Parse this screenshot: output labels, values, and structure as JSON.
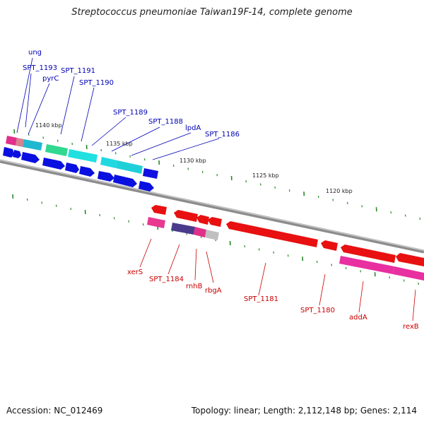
{
  "title": "Streptococcus pneumoniae Taiwan19F-14, complete genome",
  "footer": {
    "accession": "Accession: NC_012469",
    "summary": "Topology: linear; Length: 2,112,148 bp; Genes: 2,114"
  },
  "colors": {
    "forward_label": "#0000b4",
    "reverse_label": "#c80000",
    "backbone": "#8c8c8c",
    "tick": "#2a8a2a"
  },
  "kbp_markers": [
    "1140 kbp",
    "1135 kbp",
    "1130 kbp",
    "1125 kbp",
    "1120 kbp"
  ],
  "top_labels": [
    "ung",
    "SPT_1193",
    "pyrC",
    "SPT_1191",
    "SPT_1190",
    "SPT_1189",
    "SPT_1188",
    "lpdA",
    "SPT_1186"
  ],
  "bottom_labels": [
    "xerS",
    "SPT_1184",
    "rnhB",
    "rbgA",
    "SPT_1181",
    "SPT_1180",
    "addA",
    "rexB"
  ]
}
